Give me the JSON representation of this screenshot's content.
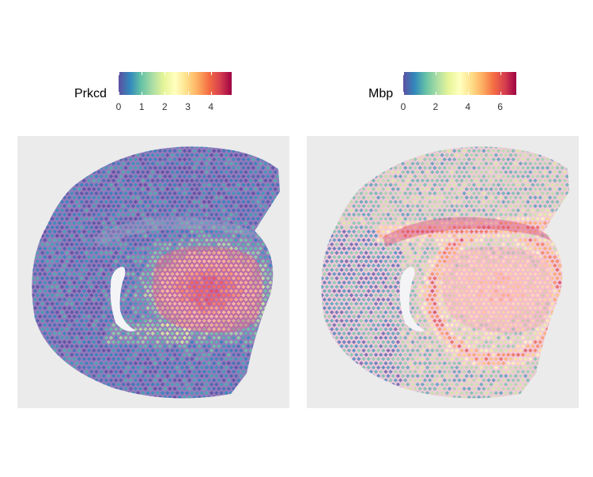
{
  "colors": {
    "spectral": [
      "#5e4fa2",
      "#3288bd",
      "#66c2a5",
      "#abdda4",
      "#e6f598",
      "#ffffbf",
      "#fee08b",
      "#fdae61",
      "#f46d43",
      "#d53e4f",
      "#9e0142"
    ],
    "panel_background": "#ebebeb",
    "tissue_purple": "#8a67b5",
    "tissue_pink": "#f2c4d9",
    "vessel_white": "#f4f4f6"
  },
  "chart_data": [
    {
      "type": "spatial-scatter",
      "gene": "Prkcd",
      "legend_title": "Prkcd",
      "colormap": "Spectral (reversed)",
      "value_range": [
        0,
        4.9
      ],
      "ticks": [
        0,
        1,
        2,
        3,
        4
      ],
      "tick_labels": [
        "0",
        "1",
        "2",
        "3",
        "4"
      ],
      "expression_pattern": "high in thalamus (right-center region), low elsewhere",
      "legend_position": "top"
    },
    {
      "type": "spatial-scatter",
      "gene": "Mbp",
      "legend_title": "Mbp",
      "colormap": "Spectral (reversed)",
      "value_range": [
        0,
        7
      ],
      "ticks": [
        0,
        2,
        4,
        6
      ],
      "tick_labels": [
        "0",
        "2",
        "4",
        "6"
      ],
      "expression_pattern": "high in white-matter tracts and thalamus, moderate elsewhere",
      "legend_position": "top"
    }
  ]
}
